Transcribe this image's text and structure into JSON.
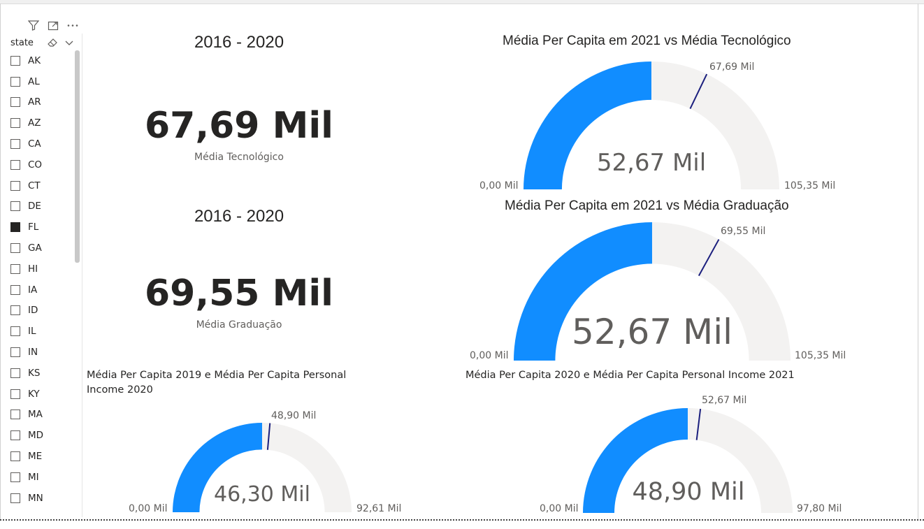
{
  "slicer": {
    "title": "state",
    "items": [
      {
        "label": "AK",
        "checked": false
      },
      {
        "label": "AL",
        "checked": false
      },
      {
        "label": "AR",
        "checked": false
      },
      {
        "label": "AZ",
        "checked": false
      },
      {
        "label": "CA",
        "checked": false
      },
      {
        "label": "CO",
        "checked": false
      },
      {
        "label": "CT",
        "checked": false
      },
      {
        "label": "DE",
        "checked": false
      },
      {
        "label": "FL",
        "checked": true
      },
      {
        "label": "GA",
        "checked": false
      },
      {
        "label": "HI",
        "checked": false
      },
      {
        "label": "IA",
        "checked": false
      },
      {
        "label": "ID",
        "checked": false
      },
      {
        "label": "IL",
        "checked": false
      },
      {
        "label": "IN",
        "checked": false
      },
      {
        "label": "KS",
        "checked": false
      },
      {
        "label": "KY",
        "checked": false
      },
      {
        "label": "MA",
        "checked": false
      },
      {
        "label": "MD",
        "checked": false
      },
      {
        "label": "ME",
        "checked": false
      },
      {
        "label": "MI",
        "checked": false
      },
      {
        "label": "MN",
        "checked": false
      }
    ]
  },
  "cards": [
    {
      "title": "2016 - 2020",
      "value": "67,69 Mil",
      "caption": "Média Tecnológico"
    },
    {
      "title": "2016 - 2020",
      "value": "69,55 Mil",
      "caption": "Média Graduação"
    }
  ],
  "colors": {
    "fill": "#118dff",
    "track": "#f3f2f1",
    "target": "#1b1f7e"
  },
  "chart_data": [
    {
      "type": "gauge",
      "title": "Média Per Capita em 2021 vs Média Tecnológico",
      "min": 0,
      "max": 105.35,
      "value": 52.67,
      "target": 67.69,
      "min_label": "0,00 Mil",
      "max_label": "105,35 Mil",
      "value_label": "52,67 Mil",
      "target_label": "67,69 Mil"
    },
    {
      "type": "gauge",
      "title": "Média Per Capita em 2021 vs Média Graduação",
      "min": 0,
      "max": 105.35,
      "value": 52.67,
      "target": 69.55,
      "min_label": "0,00 Mil",
      "max_label": "105,35 Mil",
      "value_label": "52,67 Mil",
      "target_label": "69,55 Mil"
    },
    {
      "type": "gauge",
      "title": "Média Per Capita 2019 e Média Per Capita Personal Income 2020",
      "min": 0,
      "max": 92.61,
      "value": 46.3,
      "target": 48.9,
      "min_label": "0,00 Mil",
      "max_label": "92,61 Mil",
      "value_label": "46,30 Mil",
      "target_label": "48,90 Mil"
    },
    {
      "type": "gauge",
      "title": "Média Per Capita 2020 e Média Per Capita Personal Income 2021",
      "min": 0,
      "max": 97.8,
      "value": 48.9,
      "target": 52.67,
      "min_label": "0,00 Mil",
      "max_label": "97,80 Mil",
      "value_label": "48,90 Mil",
      "target_label": "52,67 Mil"
    }
  ]
}
